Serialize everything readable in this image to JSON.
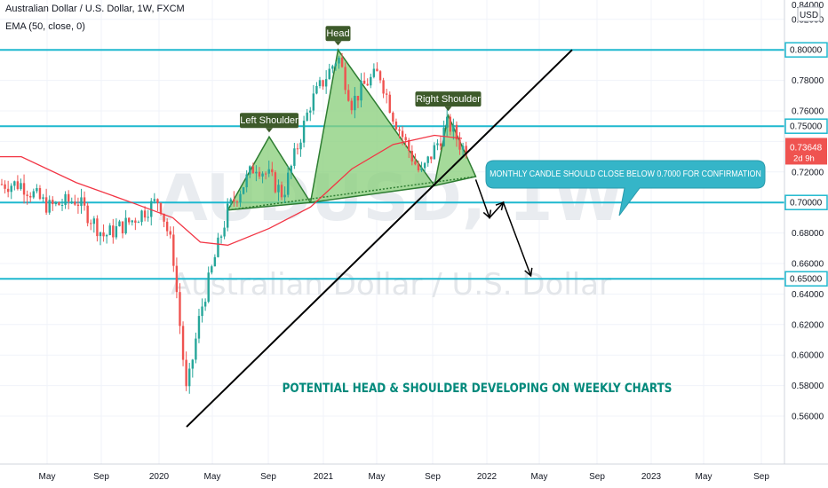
{
  "header": {
    "title": "Australian Dollar / U.S. Dollar, 1W, FXCM",
    "indicator": "EMA (50, close, 0)"
  },
  "watermark": {
    "symbol": "AUDUSD, 1W",
    "name": "Australian Dollar / U.S. Dollar"
  },
  "currency_badge": "USD",
  "colors": {
    "up": "#26a69a",
    "down": "#ef5350",
    "ema": "#f23645",
    "hline": "#1fb8cf",
    "pattern_fill": "#8ccf7e",
    "pattern_stroke": "#2e7d32",
    "label_bg": "#3d5a2a",
    "callout_bg": "#35b5c8",
    "main_text": "#00897b"
  },
  "chart_data": {
    "type": "candlestick",
    "title": "Australian Dollar / U.S. Dollar, 1W, FXCM",
    "ylim": [
      0.545,
      0.842
    ],
    "y_ticks": [
      "0.82000",
      "0.80000",
      "0.78000",
      "0.76000",
      "0.74000",
      "0.72000",
      "0.70000",
      "0.68000",
      "0.66000",
      "0.64000",
      "0.62000",
      "0.60000",
      "0.58000",
      "0.56000"
    ],
    "x_ticks": [
      "May",
      "Sep",
      "2020",
      "May",
      "Sep",
      "2021",
      "May",
      "Sep",
      "2022",
      "May",
      "Sep",
      "2023",
      "May",
      "Sep"
    ],
    "top_partial_tick": "0.84000",
    "last_price": "0.73648",
    "last_price_sub": "2d 9h",
    "price_path": [
      {
        "date": "2019-03",
        "price": 0.712
      },
      {
        "date": "2019-05",
        "price": 0.697
      },
      {
        "date": "2019-07",
        "price": 0.702
      },
      {
        "date": "2019-09",
        "price": 0.678
      },
      {
        "date": "2019-11",
        "price": 0.688
      },
      {
        "date": "2020-01",
        "price": 0.702
      },
      {
        "date": "2020-02",
        "price": 0.668
      },
      {
        "date": "2020-03",
        "price": 0.574
      },
      {
        "date": "2020-04",
        "price": 0.628
      },
      {
        "date": "2020-05",
        "price": 0.662
      },
      {
        "date": "2020-06",
        "price": 0.695
      },
      {
        "date": "2020-08",
        "price": 0.725
      },
      {
        "date": "2020-09",
        "price": 0.717
      },
      {
        "date": "2020-10",
        "price": 0.705
      },
      {
        "date": "2020-11",
        "price": 0.735
      },
      {
        "date": "2020-12",
        "price": 0.765
      },
      {
        "date": "2021-02",
        "price": 0.796
      },
      {
        "date": "2021-03",
        "price": 0.765
      },
      {
        "date": "2021-04",
        "price": 0.778
      },
      {
        "date": "2021-05",
        "price": 0.785
      },
      {
        "date": "2021-06",
        "price": 0.757
      },
      {
        "date": "2021-07",
        "price": 0.737
      },
      {
        "date": "2021-08",
        "price": 0.718
      },
      {
        "date": "2021-09",
        "price": 0.735
      },
      {
        "date": "2021-10",
        "price": 0.752
      },
      {
        "date": "2021-11",
        "price": 0.736
      }
    ],
    "ema_path": [
      {
        "date": "2019-03",
        "price": 0.73
      },
      {
        "date": "2019-07",
        "price": 0.713
      },
      {
        "date": "2019-11",
        "price": 0.7
      },
      {
        "date": "2020-02",
        "price": 0.69
      },
      {
        "date": "2020-04",
        "price": 0.674
      },
      {
        "date": "2020-06",
        "price": 0.672
      },
      {
        "date": "2020-09",
        "price": 0.683
      },
      {
        "date": "2020-12",
        "price": 0.697
      },
      {
        "date": "2021-03",
        "price": 0.722
      },
      {
        "date": "2021-06",
        "price": 0.738
      },
      {
        "date": "2021-09",
        "price": 0.744
      },
      {
        "date": "2021-11",
        "price": 0.742
      }
    ],
    "horizontal_levels": [
      {
        "label": "0.80000",
        "value": 0.8
      },
      {
        "label": "0.75000",
        "value": 0.75
      },
      {
        "label": "0.70000",
        "value": 0.7
      },
      {
        "label": "0.65000",
        "value": 0.65
      }
    ],
    "trendline": {
      "from": {
        "date": "2020-03",
        "price": 0.553
      },
      "to": {
        "date": "2022-07",
        "price": 0.8
      }
    },
    "pattern_points": [
      {
        "date": "2020-06",
        "price": 0.695
      },
      {
        "date": "2020-09",
        "price": 0.743
      },
      {
        "date": "2020-12",
        "price": 0.7
      },
      {
        "date": "2021-02",
        "price": 0.8
      },
      {
        "date": "2021-09",
        "price": 0.711
      },
      {
        "date": "2021-10",
        "price": 0.757
      },
      {
        "date": "2021-12",
        "price": 0.717
      }
    ],
    "projection_path": [
      {
        "date": "2021-12",
        "price": 0.715
      },
      {
        "date": "2022-01",
        "price": 0.69
      },
      {
        "date": "2022-02",
        "price": 0.7
      },
      {
        "date": "2022-04",
        "price": 0.652
      }
    ],
    "annotations": [
      {
        "text": "Head"
      },
      {
        "text": "Left Shoulder"
      },
      {
        "text": "Right Shoulder"
      },
      {
        "text": "MONTHLY CANDLE SHOULD CLOSE BELOW 0.7000 FOR CONFIRMATION"
      },
      {
        "text": "POTENTIAL HEAD & SHOULDER DEVELOPING ON WEEKLY CHARTS"
      }
    ]
  }
}
